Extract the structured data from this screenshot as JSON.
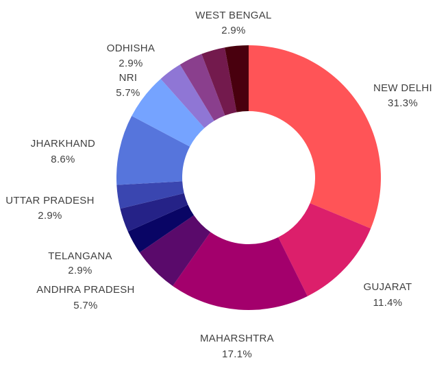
{
  "chart_data": {
    "type": "pie",
    "variant": "donut",
    "title": "",
    "legend": "none",
    "slices": [
      {
        "label": "NEW DELHI",
        "pct_text": "31.3%",
        "value": 31.3,
        "color": "#ff5457"
      },
      {
        "label": "GUJARAT",
        "pct_text": "11.4%",
        "value": 11.4,
        "color": "#dc1f6b"
      },
      {
        "label": "MAHARSHTRA",
        "pct_text": "17.1%",
        "value": 17.1,
        "color": "#a3006c"
      },
      {
        "label": "ANDHRA PRADESH",
        "pct_text": "5.7%",
        "value": 5.7,
        "color": "#5a0a6b"
      },
      {
        "label": "",
        "pct_text": "",
        "value": 2.9,
        "color": "#090565"
      },
      {
        "label": "TELANGANA",
        "pct_text": "2.9%",
        "value": 2.9,
        "color": "#252287"
      },
      {
        "label": "UTTAR PRADESH",
        "pct_text": "2.9%",
        "value": 2.9,
        "color": "#3a46b0"
      },
      {
        "label": "JHARKHAND",
        "pct_text": "8.6%",
        "value": 8.6,
        "color": "#5675dc"
      },
      {
        "label": "NRI",
        "pct_text": "5.7%",
        "value": 5.7,
        "color": "#75a3ff"
      },
      {
        "label": "",
        "pct_text": "",
        "value": 2.9,
        "color": "#8f76d5"
      },
      {
        "label": "ODHISHA",
        "pct_text": "2.9%",
        "value": 2.9,
        "color": "#8a3f8d"
      },
      {
        "label": "",
        "pct_text": "",
        "value": 2.9,
        "color": "#731a4d"
      },
      {
        "label": "WEST BENGAL",
        "pct_text": "2.9%",
        "value": 2.9,
        "color": "#49000e"
      }
    ]
  }
}
